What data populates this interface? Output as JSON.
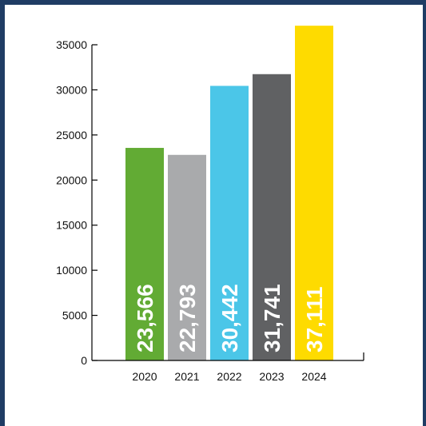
{
  "chart_data": {
    "type": "bar",
    "categories": [
      "2020",
      "2021",
      "2022",
      "2023",
      "2024"
    ],
    "values": [
      23566,
      22793,
      30442,
      31741,
      37111
    ],
    "value_labels": [
      "23,566",
      "22,793",
      "30,442",
      "31,741",
      "37,111"
    ],
    "colors": [
      "#62ab34",
      "#a9aaac",
      "#4bc6e8",
      "#606163",
      "#fedb00"
    ],
    "title": "",
    "xlabel": "",
    "ylabel": "",
    "ylim": [
      0,
      35000
    ],
    "yticks": [
      0,
      5000,
      10000,
      15000,
      20000,
      25000,
      30000,
      35000
    ],
    "grid": false,
    "legend": "none",
    "data_label_orientation": "vertical"
  },
  "colors": {
    "frame": "#1f3c64",
    "axis": "#000000"
  }
}
